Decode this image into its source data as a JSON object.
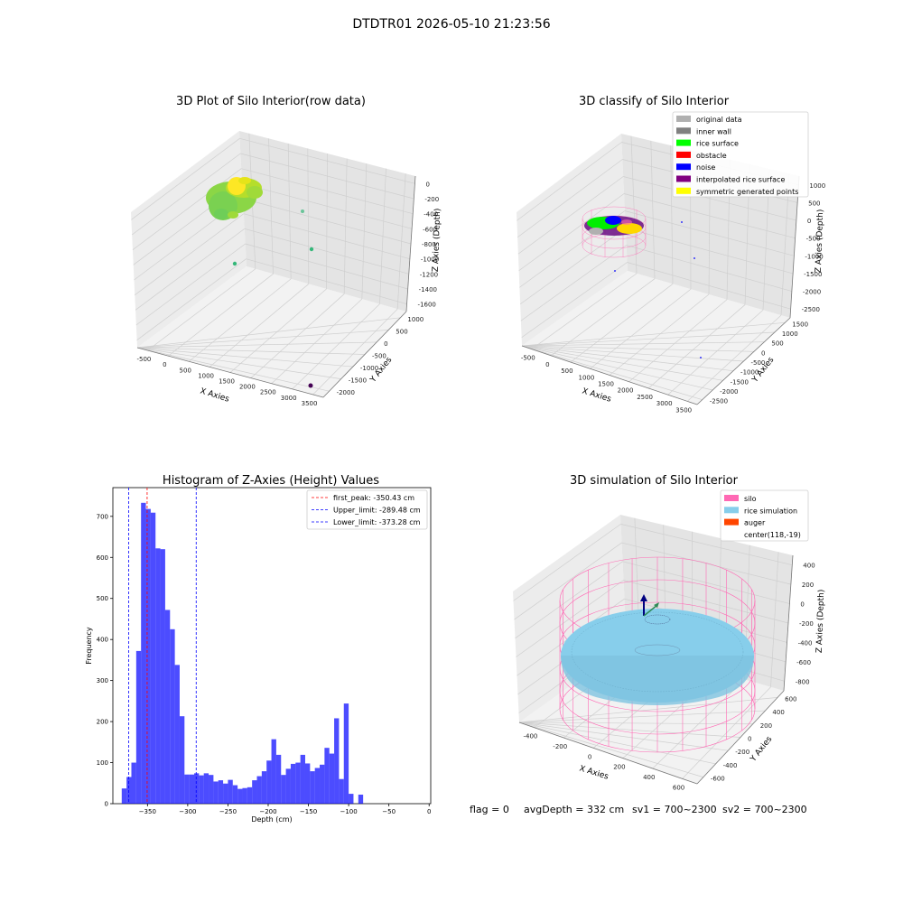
{
  "figure_title": "DTDTR01 2026-05-10 21:23:56",
  "footer": {
    "flag": "flag = 0",
    "avg": "avgDepth = 332 cm",
    "sv1": "sv1 = 700~2300",
    "sv2": "sv2 = 700~2300"
  },
  "chart_data": [
    {
      "type": "scatter",
      "projection": "3d",
      "title": "3D Plot of Silo Interior(row data)",
      "xlabel": "X Axies",
      "ylabel": "Y Axies",
      "zlabel": "Z Axies (Depth)",
      "x_ticks": [
        "-500",
        "0",
        "500",
        "1000",
        "1500",
        "2000",
        "2500",
        "3000",
        "3500"
      ],
      "y_ticks": [
        "1000",
        "500",
        "0",
        "-500",
        "-1000",
        "-1500",
        "-2000"
      ],
      "z_ticks": [
        "0",
        "-200",
        "-400",
        "-600",
        "-800",
        "-1000",
        "-1200",
        "-1400",
        "-1600"
      ],
      "cluster": {
        "x_range": [
          -500,
          200
        ],
        "y_range": [
          -400,
          400
        ],
        "z_range": [
          -450,
          -150
        ],
        "colors": [
          "#7bd34b",
          "#a8db34",
          "#d4e21a",
          "#fde725"
        ]
      },
      "outliers": [
        {
          "x": 600,
          "y": -100,
          "z": -850,
          "color": "#35b779"
        },
        {
          "x": 2000,
          "y": 800,
          "z": -450,
          "color": "#35b779"
        },
        {
          "x": 2100,
          "y": -200,
          "z": -800,
          "color": "#35b779"
        },
        {
          "x": 3600,
          "y": -1800,
          "z": -1650,
          "color": "#440154"
        }
      ],
      "grid": true
    },
    {
      "type": "scatter",
      "projection": "3d",
      "title": "3D classify of Silo Interior",
      "xlabel": "X Axies",
      "ylabel": "Y Axies",
      "zlabel": "Z Axies (Depth)",
      "x_ticks": [
        "-500",
        "0",
        "500",
        "1000",
        "1500",
        "2000",
        "2500",
        "3000",
        "3500"
      ],
      "y_ticks": [
        "1500",
        "1000",
        "500",
        "0",
        "-500",
        "-1000",
        "-1500",
        "-2000",
        "-2500"
      ],
      "z_ticks": [
        "1000",
        "500",
        "0",
        "-500",
        "-1000",
        "-1500",
        "-2000",
        "-2500"
      ],
      "legend": [
        {
          "label": "original data",
          "color": "#b0b0b0"
        },
        {
          "label": "inner wall",
          "color": "#808080"
        },
        {
          "label": "rice surface",
          "color": "#00ff00"
        },
        {
          "label": "obstacle",
          "color": "#ff0000"
        },
        {
          "label": "noise",
          "color": "#0000ff"
        },
        {
          "label": "interpolated rice surface",
          "color": "#800080"
        },
        {
          "label": "symmetric generated points",
          "color": "#ffff00"
        }
      ],
      "legend_position": "top-right",
      "grid": true
    },
    {
      "type": "bar",
      "title": "Histogram of Z-Axies (Height) Values",
      "xlabel": "Depth (cm)",
      "ylabel": "Frequency",
      "xlim": [
        -393,
        2
      ],
      "ylim": [
        0,
        770
      ],
      "x_ticks": [
        -350,
        -300,
        -250,
        -200,
        -150,
        -100,
        -50,
        0
      ],
      "x_tick_labels": [
        "−350",
        "−300",
        "−250",
        "−200",
        "−150",
        "−100",
        "−50",
        "0"
      ],
      "y_ticks": [
        0,
        100,
        200,
        300,
        400,
        500,
        600,
        700
      ],
      "bin_start": -382,
      "bin_width": 6,
      "values": [
        37,
        65,
        100,
        372,
        733,
        718,
        709,
        622,
        620,
        472,
        425,
        338,
        213,
        71,
        71,
        74,
        69,
        74,
        70,
        54,
        57,
        49,
        58,
        45,
        36,
        38,
        40,
        57,
        67,
        79,
        105,
        157,
        119,
        70,
        85,
        97,
        100,
        119,
        98,
        79,
        87,
        95,
        136,
        122,
        208,
        60,
        244,
        24,
        0,
        22
      ],
      "color": "#0000ff",
      "alpha": 0.7,
      "vlines": [
        {
          "label": "first_peak: -350.43 cm",
          "x": -350.43,
          "color": "#ff0000"
        },
        {
          "label": "Upper_limit: -289.48 cm",
          "x": -289.48,
          "color": "#0000ff"
        },
        {
          "label": "Lower_limit: -373.28 cm",
          "x": -373.28,
          "color": "#0000ff"
        }
      ],
      "legend_position": "top-right"
    },
    {
      "type": "scatter",
      "projection": "3d",
      "title": "3D simulation of Silo Interior",
      "xlabel": "X Axies",
      "ylabel": "Y Axies",
      "zlabel": "Z Axies (Depth)",
      "x_ticks": [
        "-400",
        "-200",
        "0",
        "200",
        "400",
        "600"
      ],
      "y_ticks": [
        "600",
        "400",
        "200",
        "0",
        "-200",
        "-400",
        "-600"
      ],
      "z_ticks": [
        "400",
        "200",
        "0",
        "-200",
        "-400",
        "-600",
        "-800"
      ],
      "legend": [
        {
          "label": "silo",
          "color": "#ff69b4"
        },
        {
          "label": "rice simulation",
          "color": "#87ceeb"
        },
        {
          "label": "auger",
          "color": "#ff4500"
        },
        {
          "label": "center(118,-19)",
          "color": ""
        }
      ],
      "legend_position": "top-right",
      "grid": true
    }
  ]
}
